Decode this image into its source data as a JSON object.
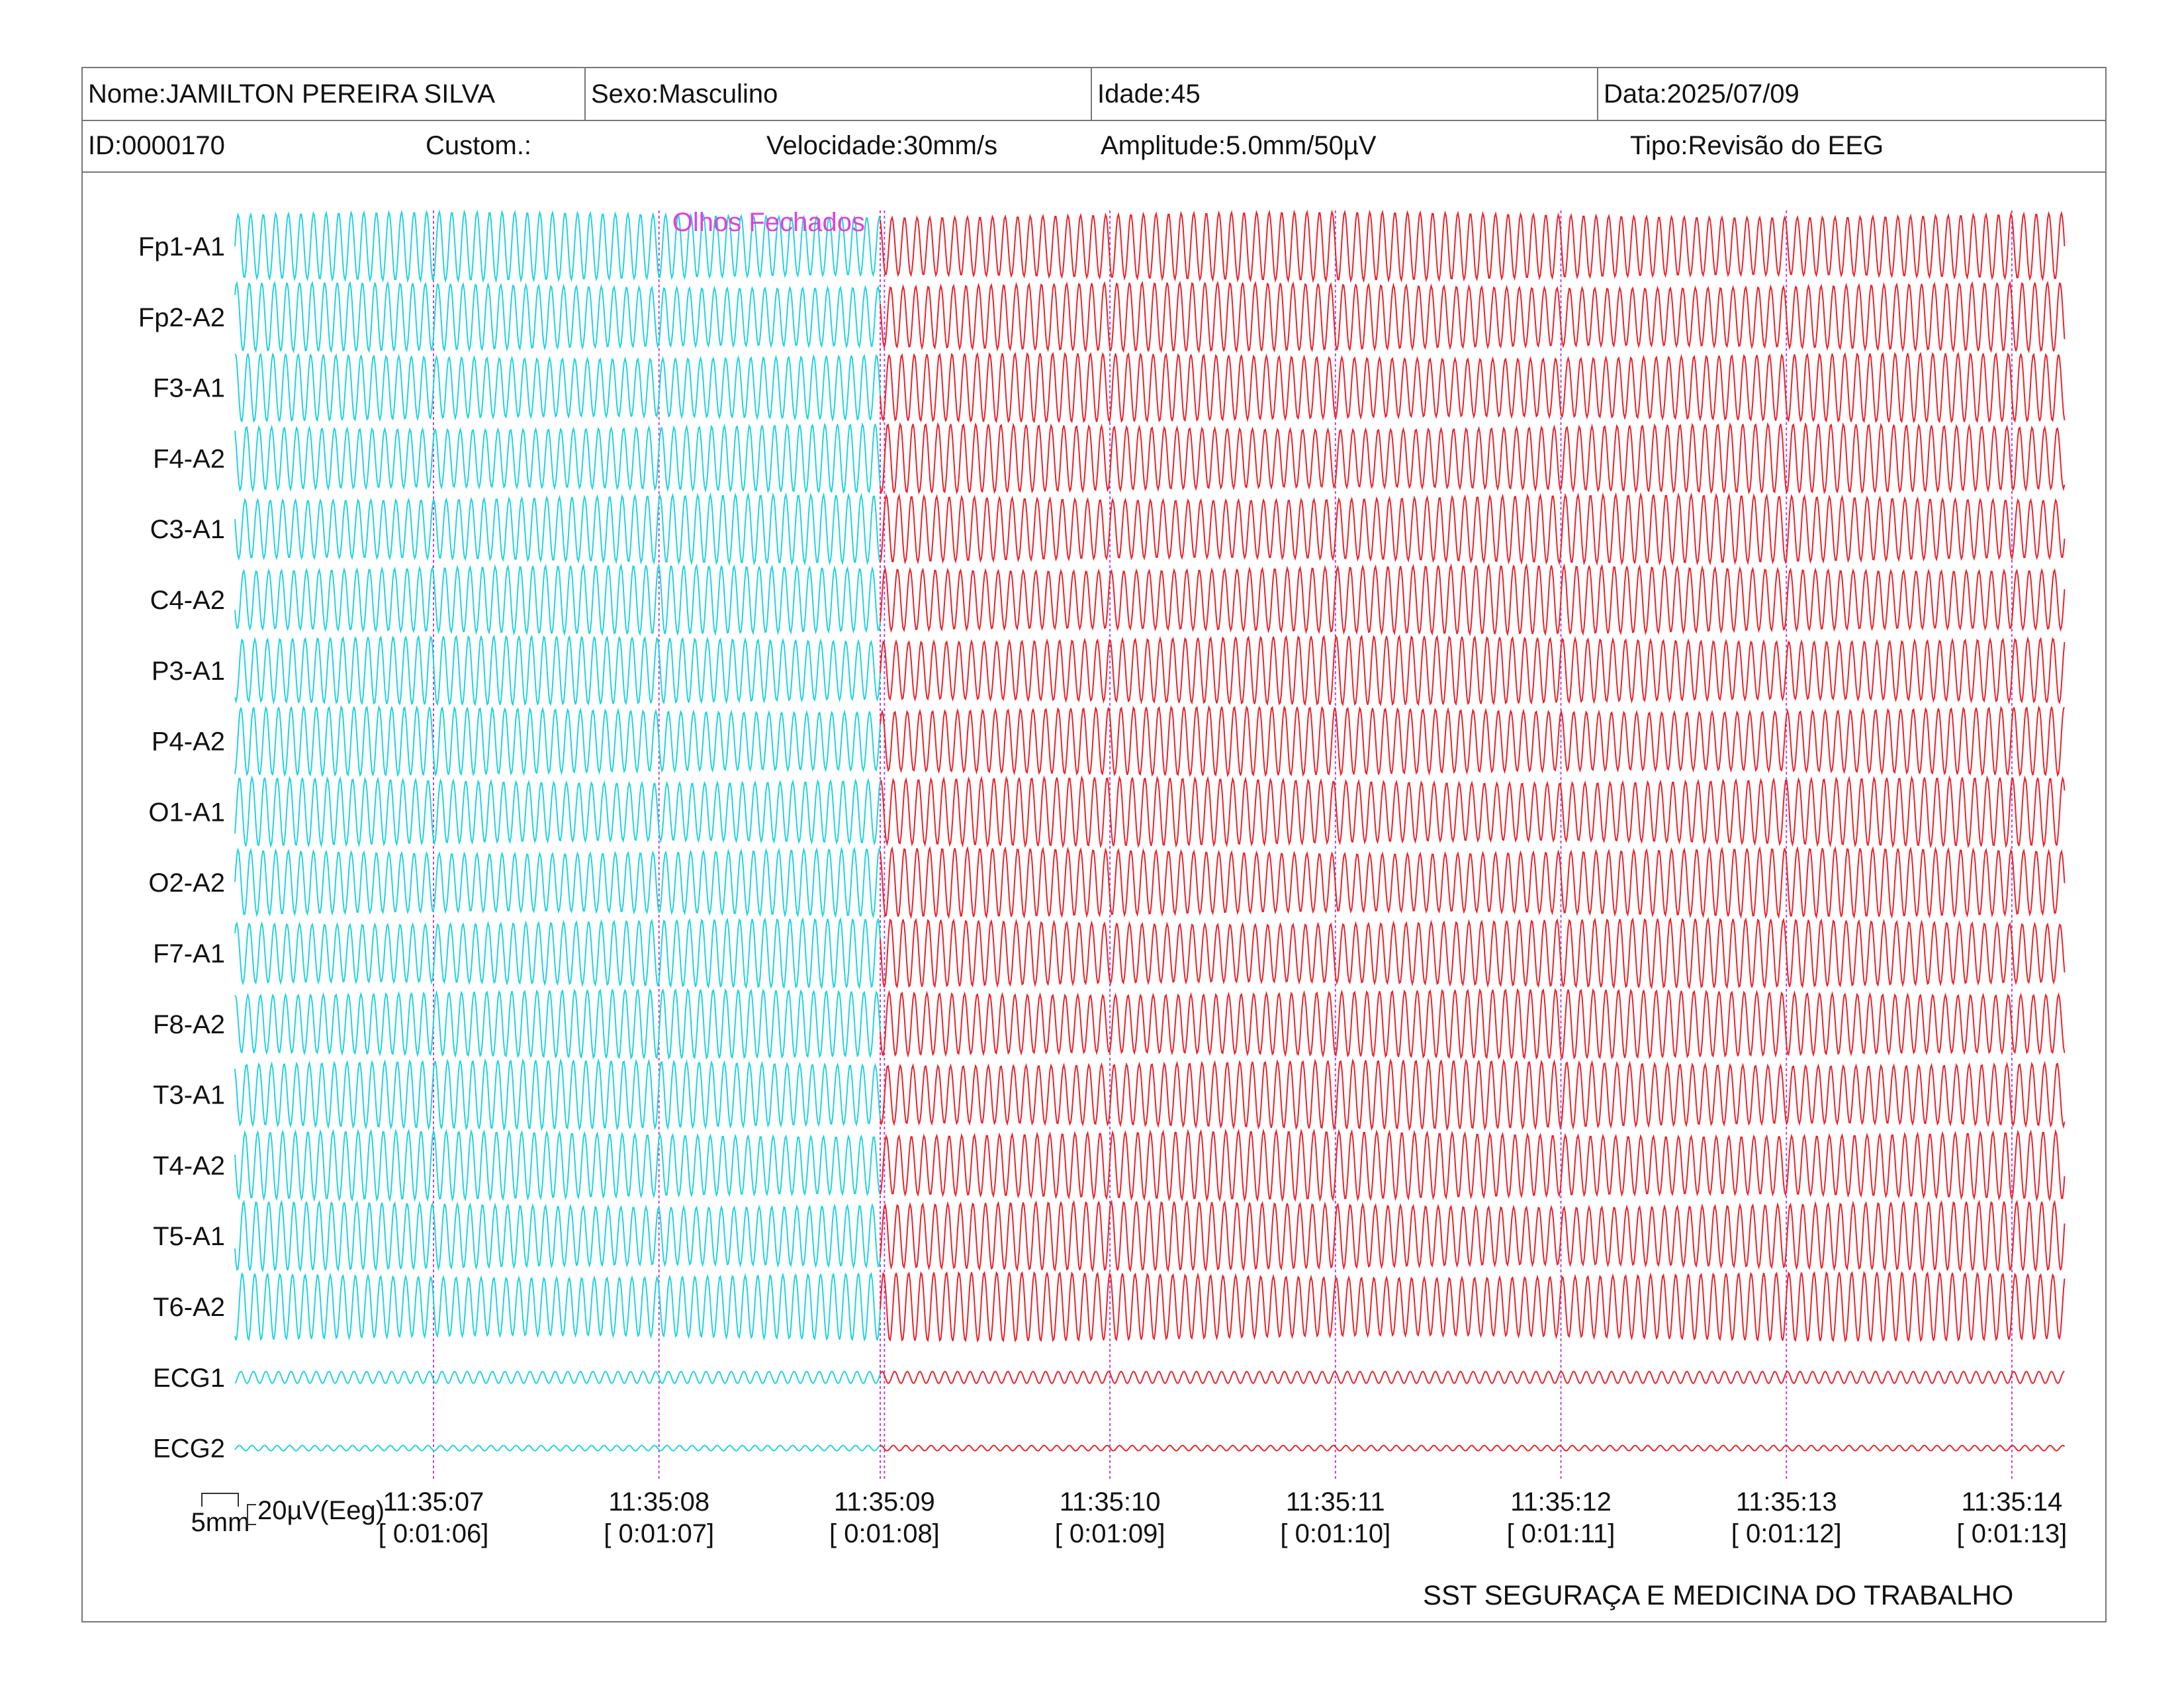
{
  "header": {
    "name": "Nome:JAMILTON PEREIRA SILVA",
    "sex": "Sexo:Masculino",
    "age": "Idade:45",
    "date": "Data:2025/07/09",
    "id": "ID:0000170",
    "custom": "Custom.:",
    "speed": "Velocidade:30mm/s",
    "amplitude": "Amplitude:5.0mm/50µV",
    "type": "Tipo:Revisão do EEG"
  },
  "event_marker": {
    "label": "Olhos Fechados",
    "color": "#e040e0"
  },
  "channels": [
    "Fp1-A1",
    "Fp2-A2",
    "F3-A1",
    "F4-A2",
    "C3-A1",
    "C4-A2",
    "P3-A1",
    "P4-A2",
    "O1-A1",
    "O2-A2",
    "F7-A1",
    "F8-A2",
    "T3-A1",
    "T4-A2",
    "T5-A1",
    "T6-A2",
    "ECG1",
    "ECG2"
  ],
  "time_markers": [
    {
      "time": "11:35:07",
      "elapsed": "[ 0:01:06]"
    },
    {
      "time": "11:35:08",
      "elapsed": "[ 0:01:07]"
    },
    {
      "time": "11:35:09",
      "elapsed": "[ 0:01:08]"
    },
    {
      "time": "11:35:10",
      "elapsed": "[ 0:01:09]"
    },
    {
      "time": "11:35:11",
      "elapsed": "[ 0:01:10]"
    },
    {
      "time": "11:35:12",
      "elapsed": "[ 0:01:11]"
    },
    {
      "time": "11:35:13",
      "elapsed": "[ 0:01:12]"
    },
    {
      "time": "11:35:14",
      "elapsed": "[ 0:01:13]"
    }
  ],
  "colors": {
    "pre_event_trace": "#22d3e0",
    "post_event_trace": "#e8242c",
    "time_gridline": "#c040e0",
    "border": "#777777"
  },
  "scale_bar": {
    "time": "5mm",
    "amplitude": "20µV(Eeg)"
  },
  "footer": "SST SEGURAÇA E MEDICINA DO TRABALHO"
}
